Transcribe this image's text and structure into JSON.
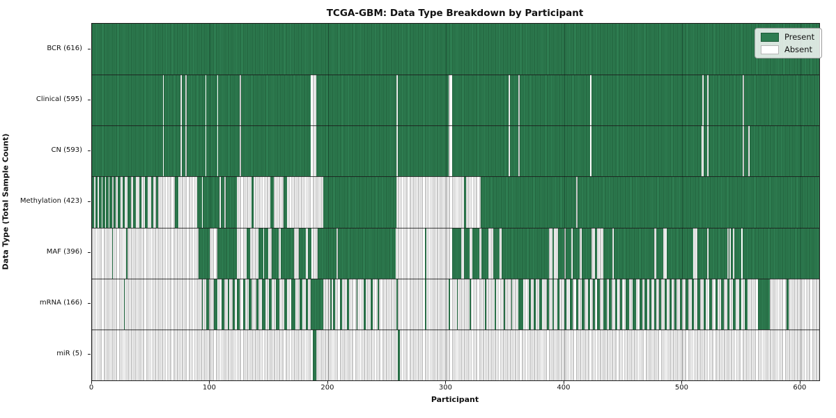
{
  "chart_data": {
    "type": "heatmap",
    "title": "TCGA-GBM: Data Type Breakdown by Participant",
    "xlabel": "Participant",
    "ylabel": "Data Type (Total Sample Count)",
    "xlim": [
      0,
      616
    ],
    "x_ticks": [
      0,
      100,
      200,
      300,
      400,
      500,
      600
    ],
    "grid": "faint vertical lines at x ticks",
    "legend_position": "upper right",
    "legend": [
      {
        "label": "Present",
        "color": "#2e7d51"
      },
      {
        "label": "Absent",
        "color": "#ffffff"
      }
    ],
    "colors": {
      "present_fill": "#2e7d51",
      "present_edge": "#1d5a38",
      "absent_fill": "#ffffff",
      "absent_edge": "#8f8f8f",
      "spine": "#1a1a1a"
    },
    "rows": [
      {
        "name": "BCR",
        "label": "BCR (616)",
        "present_total": 616,
        "present_ranges": [
          [
            0,
            616
          ]
        ]
      },
      {
        "name": "Clinical",
        "label": "Clinical (595)",
        "present_total": 595,
        "present_ranges": [
          [
            0,
            60
          ],
          [
            61,
            75
          ],
          [
            76,
            79
          ],
          [
            80,
            96
          ],
          [
            97,
            106
          ],
          [
            107,
            125
          ],
          [
            126,
            185
          ],
          [
            190,
            258
          ],
          [
            259,
            302
          ],
          [
            305,
            353
          ],
          [
            354,
            361
          ],
          [
            362,
            422
          ],
          [
            423,
            517
          ],
          [
            518,
            521
          ],
          [
            522,
            551
          ],
          [
            552,
            616
          ]
        ]
      },
      {
        "name": "CN",
        "label": "CN (593)",
        "present_total": 593,
        "present_ranges": [
          [
            0,
            60
          ],
          [
            61,
            75
          ],
          [
            76,
            79
          ],
          [
            80,
            96
          ],
          [
            97,
            106
          ],
          [
            107,
            125
          ],
          [
            126,
            185
          ],
          [
            190,
            258
          ],
          [
            259,
            302
          ],
          [
            305,
            353
          ],
          [
            354,
            361
          ],
          [
            362,
            422
          ],
          [
            423,
            516
          ],
          [
            518,
            521
          ],
          [
            522,
            551
          ],
          [
            552,
            556
          ],
          [
            557,
            616
          ]
        ]
      },
      {
        "name": "Methylation",
        "label": "Methylation (423)",
        "present_total": 423,
        "present_ranges": [
          [
            0,
            2
          ],
          [
            3,
            5
          ],
          [
            6,
            8
          ],
          [
            9,
            11
          ],
          [
            12,
            14
          ],
          [
            15,
            17
          ],
          [
            18,
            20
          ],
          [
            22,
            24
          ],
          [
            26,
            28
          ],
          [
            30,
            33
          ],
          [
            35,
            37
          ],
          [
            40,
            42
          ],
          [
            45,
            47
          ],
          [
            50,
            52
          ],
          [
            54,
            56
          ],
          [
            70,
            73
          ],
          [
            89,
            93
          ],
          [
            94,
            108
          ],
          [
            109,
            112
          ],
          [
            113,
            123
          ],
          [
            135,
            137
          ],
          [
            151,
            154
          ],
          [
            162,
            165
          ],
          [
            196,
            258
          ],
          [
            315,
            317
          ],
          [
            329,
            410
          ],
          [
            411,
            616
          ]
        ]
      },
      {
        "name": "MAF",
        "label": "MAF (396)",
        "present_total": 396,
        "present_ranges": [
          [
            17,
            18
          ],
          [
            29,
            30
          ],
          [
            90,
            100
          ],
          [
            106,
            123
          ],
          [
            131,
            134
          ],
          [
            141,
            145
          ],
          [
            146,
            149
          ],
          [
            152,
            158
          ],
          [
            160,
            171
          ],
          [
            175,
            181
          ],
          [
            183,
            186
          ],
          [
            191,
            207
          ],
          [
            208,
            257
          ],
          [
            282,
            283
          ],
          [
            305,
            313
          ],
          [
            315,
            320
          ],
          [
            322,
            328
          ],
          [
            330,
            336
          ],
          [
            340,
            345
          ],
          [
            347,
            387
          ],
          [
            390,
            391
          ],
          [
            395,
            400
          ],
          [
            401,
            406
          ],
          [
            407,
            413
          ],
          [
            415,
            423
          ],
          [
            426,
            428
          ],
          [
            433,
            441
          ],
          [
            442,
            476
          ],
          [
            478,
            484
          ],
          [
            487,
            509
          ],
          [
            513,
            521
          ],
          [
            522,
            538
          ],
          [
            539,
            540
          ],
          [
            541,
            543
          ],
          [
            544,
            550
          ],
          [
            551,
            616
          ]
        ]
      },
      {
        "name": "mRNA",
        "label": "mRNA (166)",
        "present_total": 166,
        "present_ranges": [
          [
            27,
            28
          ],
          [
            93,
            94
          ],
          [
            97,
            99
          ],
          [
            103,
            106
          ],
          [
            110,
            112
          ],
          [
            115,
            116
          ],
          [
            119,
            121
          ],
          [
            123,
            125
          ],
          [
            128,
            130
          ],
          [
            133,
            135
          ],
          [
            139,
            141
          ],
          [
            144,
            147
          ],
          [
            150,
            152
          ],
          [
            156,
            159
          ],
          [
            163,
            165
          ],
          [
            169,
            172
          ],
          [
            176,
            178
          ],
          [
            181,
            183
          ],
          [
            185,
            196
          ],
          [
            202,
            203
          ],
          [
            204,
            206
          ],
          [
            210,
            212
          ],
          [
            216,
            218
          ],
          [
            224,
            225
          ],
          [
            230,
            232
          ],
          [
            236,
            238
          ],
          [
            242,
            243
          ],
          [
            258,
            259
          ],
          [
            282,
            283
          ],
          [
            302,
            303
          ],
          [
            309,
            310
          ],
          [
            320,
            321
          ],
          [
            333,
            334
          ],
          [
            341,
            342
          ],
          [
            349,
            350
          ],
          [
            355,
            356
          ],
          [
            361,
            365
          ],
          [
            370,
            372
          ],
          [
            374,
            376
          ],
          [
            379,
            381
          ],
          [
            385,
            387
          ],
          [
            390,
            391
          ],
          [
            394,
            396
          ],
          [
            400,
            402
          ],
          [
            405,
            407
          ],
          [
            410,
            412
          ],
          [
            415,
            417
          ],
          [
            420,
            422
          ],
          [
            424,
            426
          ],
          [
            428,
            430
          ],
          [
            433,
            436
          ],
          [
            438,
            440
          ],
          [
            443,
            445
          ],
          [
            447,
            449
          ],
          [
            452,
            455
          ],
          [
            458,
            461
          ],
          [
            464,
            466
          ],
          [
            468,
            470
          ],
          [
            472,
            474
          ],
          [
            476,
            478
          ],
          [
            480,
            482
          ],
          [
            485,
            487
          ],
          [
            489,
            491
          ],
          [
            493,
            495
          ],
          [
            498,
            500
          ],
          [
            503,
            505
          ],
          [
            508,
            510
          ],
          [
            513,
            515
          ],
          [
            518,
            520
          ],
          [
            523,
            525
          ],
          [
            528,
            530
          ],
          [
            533,
            535
          ],
          [
            538,
            540
          ],
          [
            543,
            545
          ],
          [
            548,
            550
          ],
          [
            553,
            555
          ],
          [
            564,
            574
          ],
          [
            588,
            590
          ]
        ]
      },
      {
        "name": "miR",
        "label": "miR (5)",
        "present_total": 5,
        "present_ranges": [
          [
            187,
            190
          ],
          [
            259,
            261
          ]
        ]
      }
    ]
  }
}
